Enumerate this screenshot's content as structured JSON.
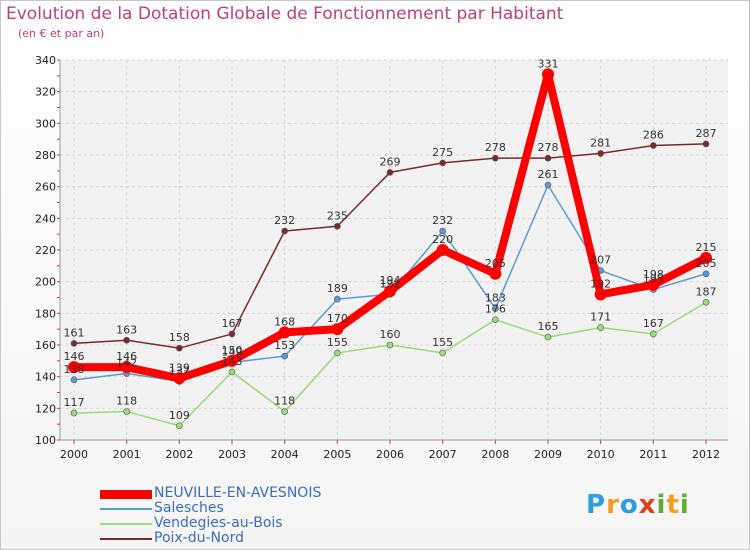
{
  "chart_data": {
    "type": "line",
    "title": "Evolution de la Dotation Globale de Fonctionnement par Habitant",
    "subtitle": "(en € et par an)",
    "xlabel": "",
    "ylabel": "",
    "x": [
      "2000",
      "2001",
      "2002",
      "2003",
      "2004",
      "2005",
      "2006",
      "2007",
      "2008",
      "2009",
      "2010",
      "2011",
      "2012"
    ],
    "ylim": [
      100,
      340
    ],
    "yticks": [
      100,
      120,
      140,
      160,
      180,
      200,
      220,
      240,
      260,
      280,
      300,
      320,
      340
    ],
    "grid": true,
    "legend_position": "bottom-left",
    "series": [
      {
        "name": "NEUVILLE-EN-AVESNOIS",
        "color": "#ff0000",
        "values": [
          146,
          146,
          139,
          150,
          168,
          170,
          194,
          220,
          205,
          331,
          192,
          198,
          215
        ]
      },
      {
        "name": "Salesches",
        "color": "#5b9bd5",
        "values": [
          138,
          142,
          137,
          149,
          153,
          189,
          192,
          232,
          183,
          261,
          207,
          195,
          205
        ]
      },
      {
        "name": "Vendegies-au-Bois",
        "color": "#99dd77",
        "values": [
          117,
          118,
          109,
          143,
          118,
          155,
          160,
          155,
          176,
          165,
          171,
          167,
          187
        ]
      },
      {
        "name": "Poix-du-Nord",
        "color": "#7a2a2a",
        "values": [
          161,
          163,
          158,
          167,
          232,
          235,
          269,
          275,
          278,
          278,
          281,
          286,
          287
        ]
      }
    ]
  },
  "logo": {
    "letters": [
      "P",
      "r",
      "o",
      "x",
      "i",
      "t",
      "i"
    ],
    "colors": [
      "#2f9be0",
      "#f0a020",
      "#2f9be0",
      "#e04020",
      "#60b030",
      "#f0a020",
      "#60b030"
    ]
  }
}
